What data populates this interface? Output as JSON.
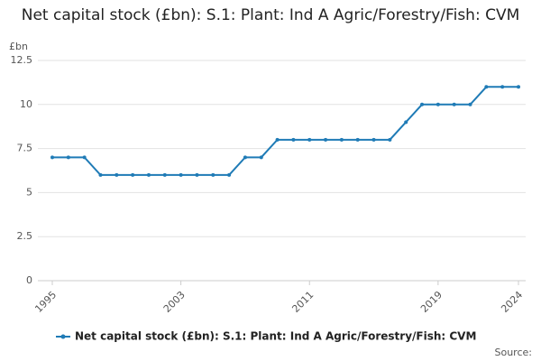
{
  "chart_data": {
    "type": "line",
    "title": "Net capital stock (£bn): S.1: Plant: Ind A Agric/Forestry/Fish: CVM",
    "y_label": "£bn",
    "source": "Source:",
    "x": [
      1995,
      1996,
      1997,
      1998,
      1999,
      2000,
      2001,
      2002,
      2003,
      2004,
      2005,
      2006,
      2007,
      2008,
      2009,
      2010,
      2011,
      2012,
      2013,
      2014,
      2015,
      2016,
      2017,
      2018,
      2019,
      2020,
      2021,
      2022,
      2023,
      2024
    ],
    "series": [
      {
        "name": "Net capital stock (£bn): S.1: Plant: Ind A Agric/Forestry/Fish: CVM",
        "color": "#1f7bb6",
        "values": [
          7,
          7,
          7,
          6,
          6,
          6,
          6,
          6,
          6,
          6,
          6,
          6,
          7,
          7,
          8,
          8,
          8,
          8,
          8,
          8,
          8,
          8,
          9,
          10,
          10,
          10,
          10,
          11,
          11,
          11
        ]
      }
    ],
    "xlim": [
      1995,
      2024
    ],
    "xticks": [
      1995,
      2003,
      2011,
      2019,
      2024
    ],
    "ylim": [
      0,
      12.5
    ],
    "yticks": [
      0,
      2.5,
      5,
      7.5,
      10,
      12.5
    ],
    "grid": true
  }
}
